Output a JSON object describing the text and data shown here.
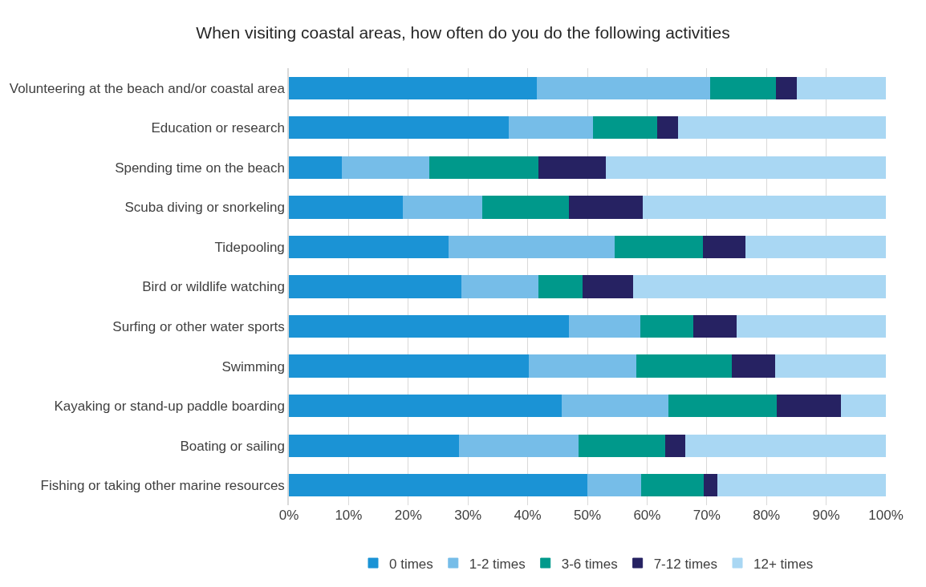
{
  "chart_data": {
    "type": "bar",
    "orientation": "horizontal",
    "stacked": true,
    "title": "When visiting coastal areas, how often do you do the following activities",
    "categories": [
      "Volunteering at the beach and/or coastal area",
      "Education or research",
      "Spending time on the beach",
      "Scuba diving or snorkeling",
      "Tidepooling",
      "Bird or wildlife watching",
      "Surfing or other water sports",
      "Swimming",
      "Kayaking or stand-up paddle boarding",
      "Boating or sailing",
      "Fishing or taking other marine resources"
    ],
    "series": [
      {
        "name": "0 times",
        "color": "#1b93d5",
        "values": [
          41.6,
          36.9,
          9.0,
          19.1,
          26.8,
          28.9,
          47.0,
          40.3,
          45.8,
          28.6,
          50.1
        ]
      },
      {
        "name": "1-2 times",
        "color": "#76bde8",
        "values": [
          29.0,
          14.1,
          14.6,
          13.3,
          27.9,
          13.0,
          12.0,
          18.0,
          17.8,
          20.0,
          9.0
        ]
      },
      {
        "name": "3-6 times",
        "color": "#00998b",
        "values": [
          11.0,
          10.8,
          18.3,
          14.6,
          14.7,
          7.4,
          8.8,
          16.0,
          18.2,
          14.5,
          10.5
        ]
      },
      {
        "name": "7-12 times",
        "color": "#262262",
        "values": [
          3.6,
          3.4,
          11.3,
          12.3,
          7.2,
          8.4,
          7.3,
          7.2,
          10.8,
          3.3,
          2.3
        ]
      },
      {
        "name": "12+ times",
        "color": "#a9d7f3",
        "values": [
          14.8,
          34.8,
          46.8,
          40.7,
          23.4,
          42.3,
          24.9,
          18.5,
          7.4,
          33.6,
          28.1
        ]
      }
    ],
    "xlim": [
      0,
      100
    ],
    "xticks": [
      {
        "value": 0,
        "label": "0%"
      },
      {
        "value": 10,
        "label": "10%"
      },
      {
        "value": 20,
        "label": "20%"
      },
      {
        "value": 30,
        "label": "30%"
      },
      {
        "value": 40,
        "label": "40%"
      },
      {
        "value": 50,
        "label": "50%"
      },
      {
        "value": 60,
        "label": "60%"
      },
      {
        "value": 70,
        "label": "70%"
      },
      {
        "value": 80,
        "label": "80%"
      },
      {
        "value": 90,
        "label": "90%"
      },
      {
        "value": 100,
        "label": "100%"
      }
    ],
    "grid": "x",
    "legend": "bottom"
  }
}
